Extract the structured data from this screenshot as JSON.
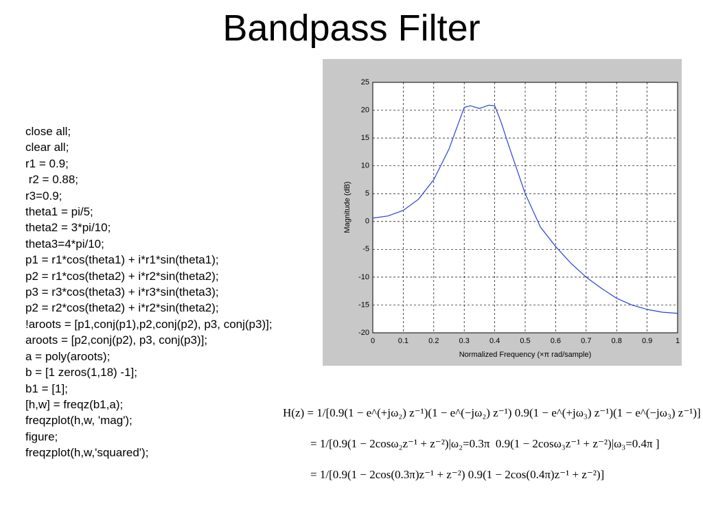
{
  "title": "Bandpass Filter",
  "code": [
    "close all;",
    "clear all;",
    "r1 = 0.9;",
    " r2 = 0.88;",
    "r3=0.9;",
    "theta1 = pi/5;",
    "theta2 = 3*pi/10;",
    "theta3=4*pi/10;",
    "p1 = r1*cos(theta1) + i*r1*sin(theta1);",
    "p2 = r1*cos(theta2) + i*r2*sin(theta2);",
    "p3 = r3*cos(theta3) + i*r3*sin(theta3);",
    "p2 = r2*cos(theta2) + i*r2*sin(theta2);",
    "!aroots = [p1,conj(p1),p2,conj(p2), p3, conj(p3)];",
    "aroots = [p2,conj(p2), p3, conj(p3)];",
    "a = poly(aroots);",
    "b = [1 zeros(1,18) -1];",
    "b1 = [1];",
    "[h,w] = freqz(b1,a);",
    "freqzplot(h,w, 'mag');",
    "figure;",
    "freqzplot(h,w,'squared');"
  ],
  "chart_data": {
    "type": "line",
    "xlabel": "Normalized Frequency  (×π rad/sample)",
    "ylabel": "Magnitude (dB)",
    "x": [
      0,
      0.05,
      0.1,
      0.15,
      0.2,
      0.25,
      0.28,
      0.3,
      0.32,
      0.35,
      0.38,
      0.4,
      0.42,
      0.45,
      0.5,
      0.55,
      0.6,
      0.65,
      0.7,
      0.75,
      0.8,
      0.85,
      0.9,
      0.95,
      1
    ],
    "values": [
      0.6,
      1,
      2,
      4,
      7.5,
      13,
      17.5,
      20.5,
      20.8,
      20.3,
      20.9,
      20.8,
      18,
      13,
      5,
      -1,
      -4.5,
      -7.5,
      -10,
      -12,
      -13.8,
      -15,
      -15.8,
      -16.3,
      -16.5
    ],
    "color": "#2b3fd6",
    "xlim": [
      0,
      1
    ],
    "xticks": [
      0,
      0.1,
      0.2,
      0.3,
      0.4,
      0.5,
      0.6,
      0.7,
      0.8,
      0.9,
      1
    ],
    "ylim": [
      -20,
      25
    ],
    "yticks": [
      -20,
      -15,
      -10,
      -5,
      0,
      5,
      10,
      15,
      20,
      25
    ],
    "grid": true
  },
  "equations": [
    "H(z) = 1/[0.9(1 − e^(+jω₂) z⁻¹)(1 − e^(−jω₂) z⁻¹) 0.9(1 − e^(+jω₃) z⁻¹)(1 − e^(−jω₃) z⁻¹)]",
    "= 1/[0.9(1 − 2cosω₂z⁻¹ + z⁻²)|ω₂=0.3π  0.9(1 − 2cosω₃z⁻¹ + z⁻²)|ω₃=0.4π ]",
    "= 1/[0.9(1 − 2cos(0.3π)z⁻¹ + z⁻²) 0.9(1 − 2cos(0.4π)z⁻¹ + z⁻²)]"
  ]
}
